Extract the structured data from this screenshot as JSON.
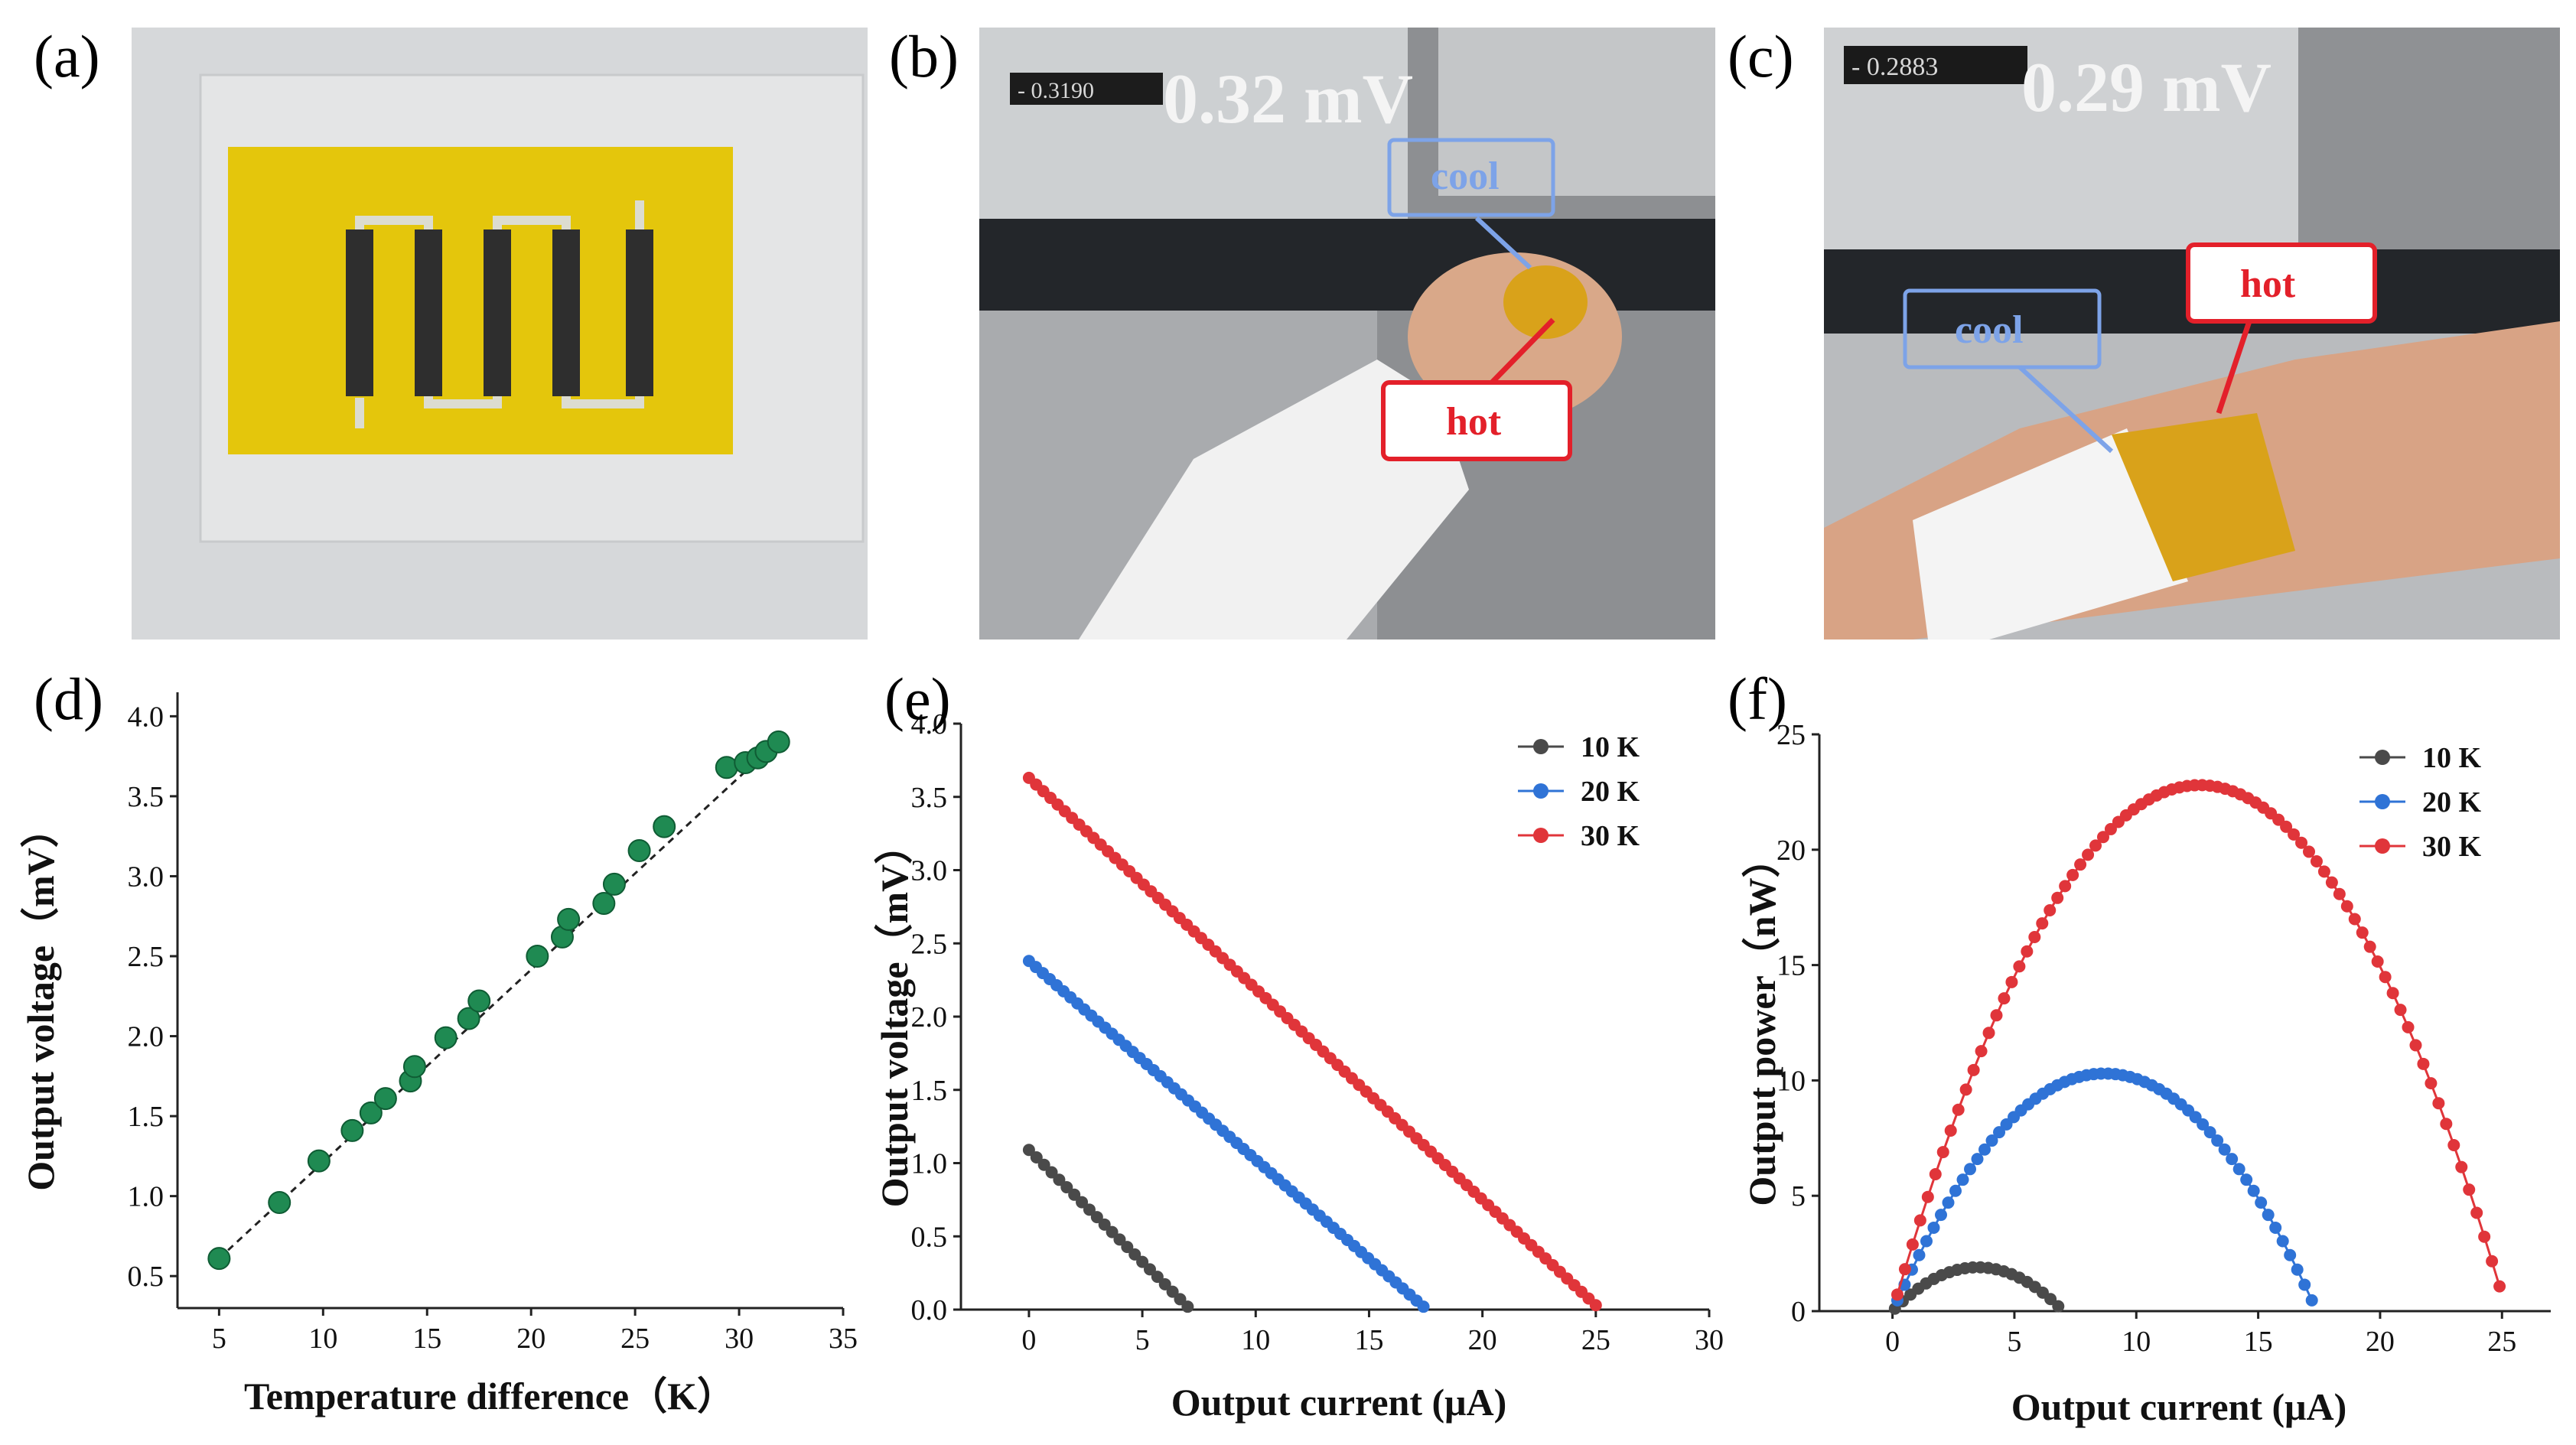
{
  "panels": {
    "a": {
      "label": "(a)"
    },
    "b": {
      "label": "(b)",
      "reading": "0.32 mV",
      "cool_label": "cool",
      "hot_label": "hot",
      "meter_display": "- 0.3190"
    },
    "c": {
      "label": "(c)",
      "reading": "0.29 mV",
      "cool_label": "cool",
      "hot_label": "hot",
      "meter_display": "- 0.2883"
    }
  },
  "colors": {
    "series_10K": "#4a4a4a",
    "series_20K": "#2f73d6",
    "series_30K": "#e0353a",
    "scatter_green": "#1f8a52",
    "annot_blue": "#7da3e8",
    "annot_red": "#e3202a",
    "substrate_yellow": "#e4c60c",
    "film_dark": "#2e2e2e"
  },
  "chart_data": [
    {
      "id": "d",
      "label": "(d)",
      "type": "scatter",
      "xlabel": "Temperature difference（K）",
      "ylabel": "Output voltage（mV）",
      "xlim": [
        3,
        35
      ],
      "ylim": [
        0.3,
        4.15
      ],
      "xticks": [
        5,
        10,
        15,
        20,
        25,
        30,
        35
      ],
      "yticks": [
        0.5,
        1.0,
        1.5,
        2.0,
        2.5,
        3.0,
        3.5,
        4.0
      ],
      "ytick_labels": [
        "0.5",
        "1.0",
        "1.5",
        "2.0",
        "2.5",
        "3.0",
        "3.5",
        "4.0"
      ],
      "x": [
        5.0,
        7.9,
        9.8,
        11.4,
        12.3,
        13.0,
        14.2,
        14.4,
        15.9,
        17.0,
        17.5,
        20.3,
        21.5,
        21.8,
        23.5,
        24.0,
        25.2,
        26.4,
        29.4,
        30.3,
        30.9,
        31.3,
        31.9
      ],
      "y": [
        0.61,
        0.96,
        1.22,
        1.41,
        1.52,
        1.61,
        1.72,
        1.81,
        1.99,
        2.11,
        2.22,
        2.5,
        2.62,
        2.73,
        2.83,
        2.95,
        3.16,
        3.31,
        3.68,
        3.71,
        3.74,
        3.78,
        3.84
      ],
      "fit_line": {
        "x": [
          5.0,
          32.0
        ],
        "y": [
          0.61,
          3.86
        ],
        "style": "dashed"
      }
    },
    {
      "id": "e",
      "label": "(e)",
      "type": "line",
      "xlabel": "Output current (μA)",
      "ylabel": "Output voltage（mV）",
      "xlim": [
        -3,
        30
      ],
      "ylim": [
        0,
        4.0
      ],
      "xticks": [
        0,
        5,
        10,
        15,
        20,
        25,
        30
      ],
      "yticks": [
        0.0,
        0.5,
        1.0,
        1.5,
        2.0,
        2.5,
        3.0,
        3.5,
        4.0
      ],
      "ytick_labels": [
        "0.0",
        "0.5",
        "1.0",
        "1.5",
        "2.0",
        "2.5",
        "3.0",
        "3.5",
        "4.0"
      ],
      "legend_position": "top-right",
      "series": [
        {
          "name": "10 K",
          "x_start": 0,
          "x_end": 7.0,
          "y_start": 1.09,
          "y_end": 0.02,
          "points": 22
        },
        {
          "name": "20 K",
          "x_start": 0,
          "x_end": 17.4,
          "y_start": 2.38,
          "y_end": 0.02,
          "points": 58
        },
        {
          "name": "30 K",
          "x_start": 0,
          "x_end": 25.0,
          "y_start": 3.63,
          "y_end": 0.03,
          "points": 80
        }
      ]
    },
    {
      "id": "f",
      "label": "(f)",
      "type": "line",
      "xlabel": "Output current (μA)",
      "ylabel": "Output power（nW）",
      "xlim": [
        -3,
        27
      ],
      "ylim": [
        0,
        25
      ],
      "xticks": [
        0,
        5,
        10,
        15,
        20,
        25
      ],
      "yticks": [
        0,
        5,
        10,
        15,
        20,
        25
      ],
      "ytick_labels": [
        "0",
        "5",
        "10",
        "15",
        "20",
        "25"
      ],
      "legend_position": "top-right",
      "series": [
        {
          "name": "10 K",
          "isc": 7.0,
          "pmax": 1.9,
          "x_start": 0.1,
          "x_end": 6.8,
          "points": 22
        },
        {
          "name": "20 K",
          "isc": 17.4,
          "pmax": 10.3,
          "x_start": 0.2,
          "x_end": 17.2,
          "points": 58
        },
        {
          "name": "30 K",
          "isc": 25.2,
          "pmax": 22.8,
          "x_start": 0.2,
          "x_end": 24.9,
          "points": 80
        }
      ]
    }
  ]
}
